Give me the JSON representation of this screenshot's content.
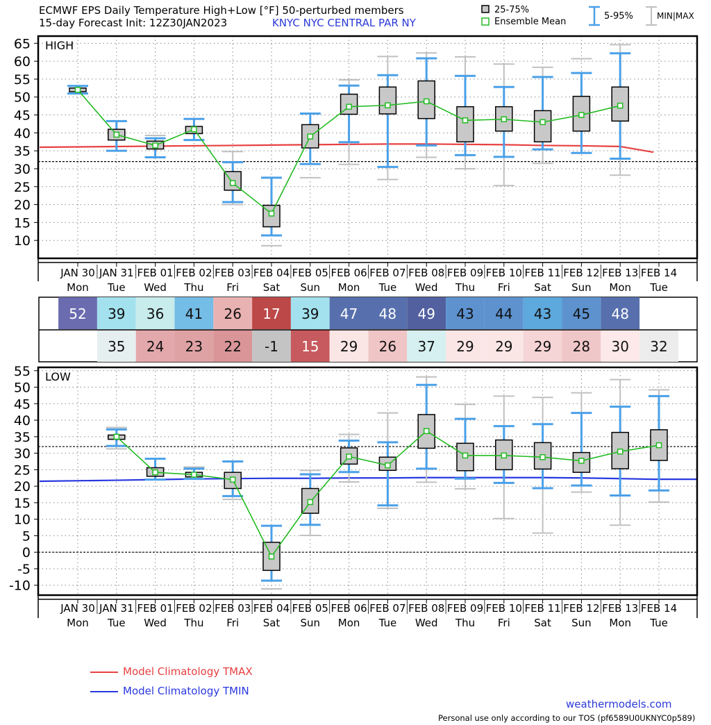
{
  "header": {
    "title_line1": "ECMWF EPS Daily Temperature High+Low [°F]  50-perturbed members",
    "title_line2": "15-day Forecast Init: 12Z30JAN2023",
    "station": "KNYC  NYC CENTRAL PAR NY"
  },
  "legend": {
    "iqr": "25-75%",
    "mean": "Ensemble Mean",
    "p5_95": "5-95%",
    "minmax": "MIN|MAX",
    "clim_tmax": "Model Climatology TMAX",
    "clim_tmin": "Model Climatology TMIN"
  },
  "footer": {
    "site": "weathermodels.com",
    "note": "Personal use only according to our TOS (pf6589U0UKNYC0p589)"
  },
  "colors": {
    "box_fill": "#c8c8c8",
    "whisker_5_95": "#4aa0e8",
    "minmax": "#c0c0c0",
    "mean": "#22bb22",
    "clim_tmax": "#e84040",
    "clim_tmin": "#2838e0"
  },
  "chart_data": [
    {
      "type": "box",
      "panel_label": "HIGH",
      "categories": [
        "JAN 30",
        "JAN 31",
        "FEB 01",
        "FEB 02",
        "FEB 03",
        "FEB 04",
        "FEB 05",
        "FEB 06",
        "FEB 07",
        "FEB 08",
        "FEB 09",
        "FEB 10",
        "FEB 11",
        "FEB 12",
        "FEB 13",
        "FEB 14"
      ],
      "weekdays": [
        "Mon",
        "Tue",
        "Wed",
        "Thu",
        "Fri",
        "Sat",
        "Sun",
        "Mon",
        "Tue",
        "Wed",
        "Thu",
        "Fri",
        "Sat",
        "Sun",
        "Mon",
        "Tue"
      ],
      "ylim": [
        5,
        67
      ],
      "yticks": [
        10,
        15,
        20,
        25,
        30,
        35,
        40,
        45,
        50,
        55,
        60,
        65
      ],
      "freezing_line": 32,
      "grid": true,
      "mean": [
        52,
        39.5,
        36.5,
        41,
        26,
        17.5,
        39,
        47.3,
        47.7,
        48.8,
        43.5,
        43.8,
        43,
        45,
        47.6,
        null
      ],
      "q25": [
        51.5,
        38,
        35.5,
        39.8,
        24,
        13.8,
        35.8,
        45.2,
        45.3,
        44,
        37.5,
        40.5,
        37.5,
        40.5,
        43.3,
        null
      ],
      "q75": [
        52.5,
        41,
        37.7,
        41.8,
        29.2,
        19.8,
        42.3,
        50.8,
        52.8,
        54.5,
        47.3,
        47.3,
        46.2,
        50.2,
        52.8,
        null
      ],
      "p5": [
        51,
        35,
        33.2,
        38,
        20.7,
        11.4,
        31.3,
        37.4,
        30.5,
        36.5,
        33.8,
        33.3,
        35.4,
        34.4,
        32.8,
        null
      ],
      "p95": [
        53.1,
        43.3,
        38.5,
        43.9,
        31.8,
        27.5,
        45.4,
        53.2,
        56.1,
        60.8,
        55.9,
        52.8,
        55.6,
        56.7,
        62.2,
        null
      ],
      "min": [
        null,
        null,
        null,
        null,
        20,
        8.5,
        27.5,
        31.2,
        27,
        33.2,
        30,
        25.3,
        31.5,
        null,
        28.2,
        null
      ],
      "max": [
        null,
        null,
        39.3,
        null,
        34.8,
        null,
        null,
        54.8,
        61.3,
        62.3,
        61.2,
        59.2,
        58.3,
        60.7,
        64.6,
        null
      ],
      "climatology_tmax": [
        36,
        36.2,
        36.3,
        36.4,
        36.5,
        36.6,
        36.7,
        36.8,
        36.9,
        36.9,
        36.8,
        36.7,
        36.5,
        36.4,
        36.2,
        34.6
      ]
    },
    {
      "type": "box",
      "panel_label": "LOW",
      "categories": [
        "JAN 30",
        "JAN 31",
        "FEB 01",
        "FEB 02",
        "FEB 03",
        "FEB 04",
        "FEB 05",
        "FEB 06",
        "FEB 07",
        "FEB 08",
        "FEB 09",
        "FEB 10",
        "FEB 11",
        "FEB 12",
        "FEB 13",
        "FEB 14"
      ],
      "weekdays": [
        "Mon",
        "Tue",
        "Wed",
        "Thu",
        "Fri",
        "Sat",
        "Sun",
        "Mon",
        "Tue",
        "Wed",
        "Thu",
        "Fri",
        "Sat",
        "Sun",
        "Mon",
        "Tue"
      ],
      "ylim": [
        -13,
        56
      ],
      "yticks": [
        -10,
        -5,
        0,
        5,
        10,
        15,
        20,
        25,
        30,
        35,
        40,
        45,
        50,
        55
      ],
      "freezing_line": 32,
      "zero_line": 0,
      "grid": true,
      "mean": [
        null,
        35,
        24.2,
        23.5,
        22,
        -1.3,
        15.2,
        29,
        26.3,
        36.7,
        29.3,
        29.3,
        28.8,
        27.7,
        30.5,
        32.4
      ],
      "q25": [
        null,
        34.2,
        23,
        22.8,
        19.3,
        -5.5,
        11.8,
        26.7,
        24.8,
        31.5,
        24.7,
        25,
        25.2,
        24.2,
        25.3,
        27.8
      ],
      "q75": [
        null,
        35.5,
        25.6,
        24.2,
        24.2,
        3,
        19.3,
        31.6,
        28.8,
        41.7,
        33,
        34,
        33.2,
        30.2,
        36.3,
        37.1
      ],
      "p5": [
        null,
        32.2,
        22,
        22.2,
        17,
        -8.6,
        8.3,
        24.3,
        14.2,
        25.3,
        22.3,
        21,
        19.4,
        20.2,
        17.2,
        18.7
      ],
      "p95": [
        null,
        37.2,
        28.3,
        25.3,
        27.5,
        8,
        23.6,
        33.8,
        33.3,
        50.7,
        40.4,
        38.2,
        38.8,
        42.2,
        44.1,
        47.3
      ],
      "min": [
        null,
        31.3,
        null,
        null,
        16,
        -11.1,
        5.1,
        21.3,
        13.3,
        21.2,
        19.2,
        10.2,
        5.8,
        18.2,
        8.2,
        15.2
      ],
      "max": [
        null,
        37.8,
        null,
        25.8,
        null,
        null,
        24.8,
        35.7,
        42.2,
        53.1,
        44.8,
        47.3,
        46.9,
        48.3,
        52.3,
        49.2
      ],
      "climatology_tmin": [
        21.5,
        21.8,
        22,
        22.2,
        22.3,
        22.4,
        22.4,
        22.5,
        22.5,
        22.6,
        22.6,
        22.6,
        22.6,
        22.5,
        22.3,
        22.1
      ]
    }
  ],
  "table": {
    "high": [
      "52",
      "39",
      "36",
      "41",
      "26",
      "17",
      "39",
      "47",
      "48",
      "49",
      "43",
      "44",
      "43",
      "45",
      "48",
      ""
    ],
    "high_colors": [
      "#6b6bb0",
      "#a3e1ee",
      "#c8ecec",
      "#74bde6",
      "#e9b2b2",
      "#bd4848",
      "#a3e1ee",
      "#5770ad",
      "#5770ad",
      "#52609f",
      "#5d92cf",
      "#5d92cf",
      "#5da8dc",
      "#5d92cf",
      "#5770ad",
      null
    ],
    "low": [
      "",
      "35",
      "24",
      "23",
      "22",
      "-1",
      "15",
      "29",
      "26",
      "37",
      "29",
      "29",
      "29",
      "28",
      "30",
      "32"
    ],
    "low_colors": [
      null,
      "#e6eff0",
      "#e3a8ab",
      "#dea2a5",
      "#d99598",
      "#c4c4c4",
      "#c75a5e",
      "#fbe6e6",
      "#efc5c6",
      "#d6f0f1",
      "#fbe6e6",
      "#fbe6e6",
      "#f6d5d6",
      "#f0c7c8",
      "#fde9e9",
      "#ececec"
    ],
    "high_light_text": [
      true,
      false,
      false,
      false,
      false,
      true,
      false,
      true,
      true,
      true,
      false,
      false,
      false,
      false,
      true,
      false
    ],
    "low_light_text": [
      false,
      false,
      false,
      false,
      false,
      false,
      true,
      false,
      false,
      false,
      false,
      false,
      false,
      false,
      false,
      false
    ]
  }
}
